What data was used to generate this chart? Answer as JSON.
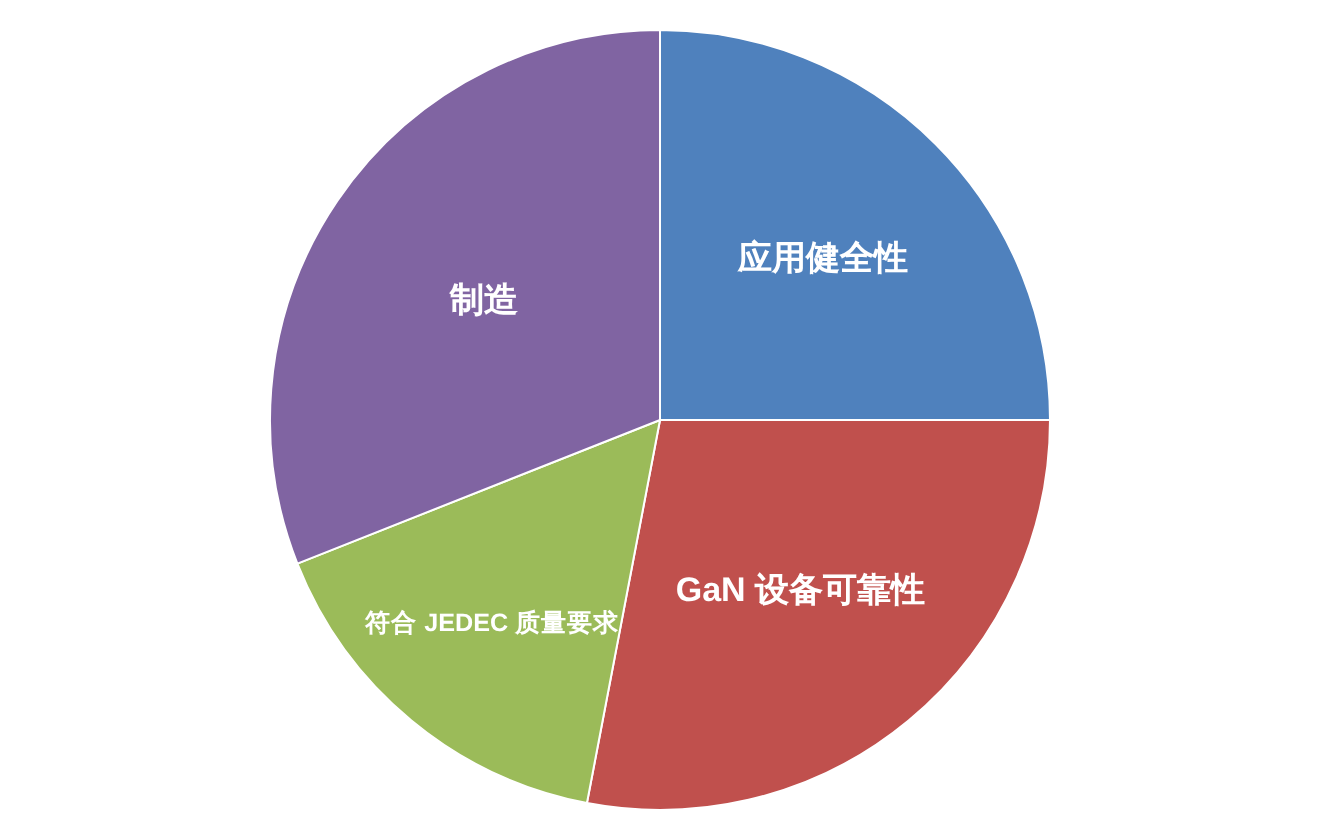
{
  "chart_data": {
    "type": "pie",
    "categories": [
      "应用健全性",
      "GaN 设备可靠性",
      "符合 JEDEC 质量要求",
      "制造"
    ],
    "values": [
      25,
      28,
      16,
      31
    ],
    "colors": [
      "#4f81bd",
      "#c0504d",
      "#9bbb59",
      "#8064a2"
    ]
  }
}
